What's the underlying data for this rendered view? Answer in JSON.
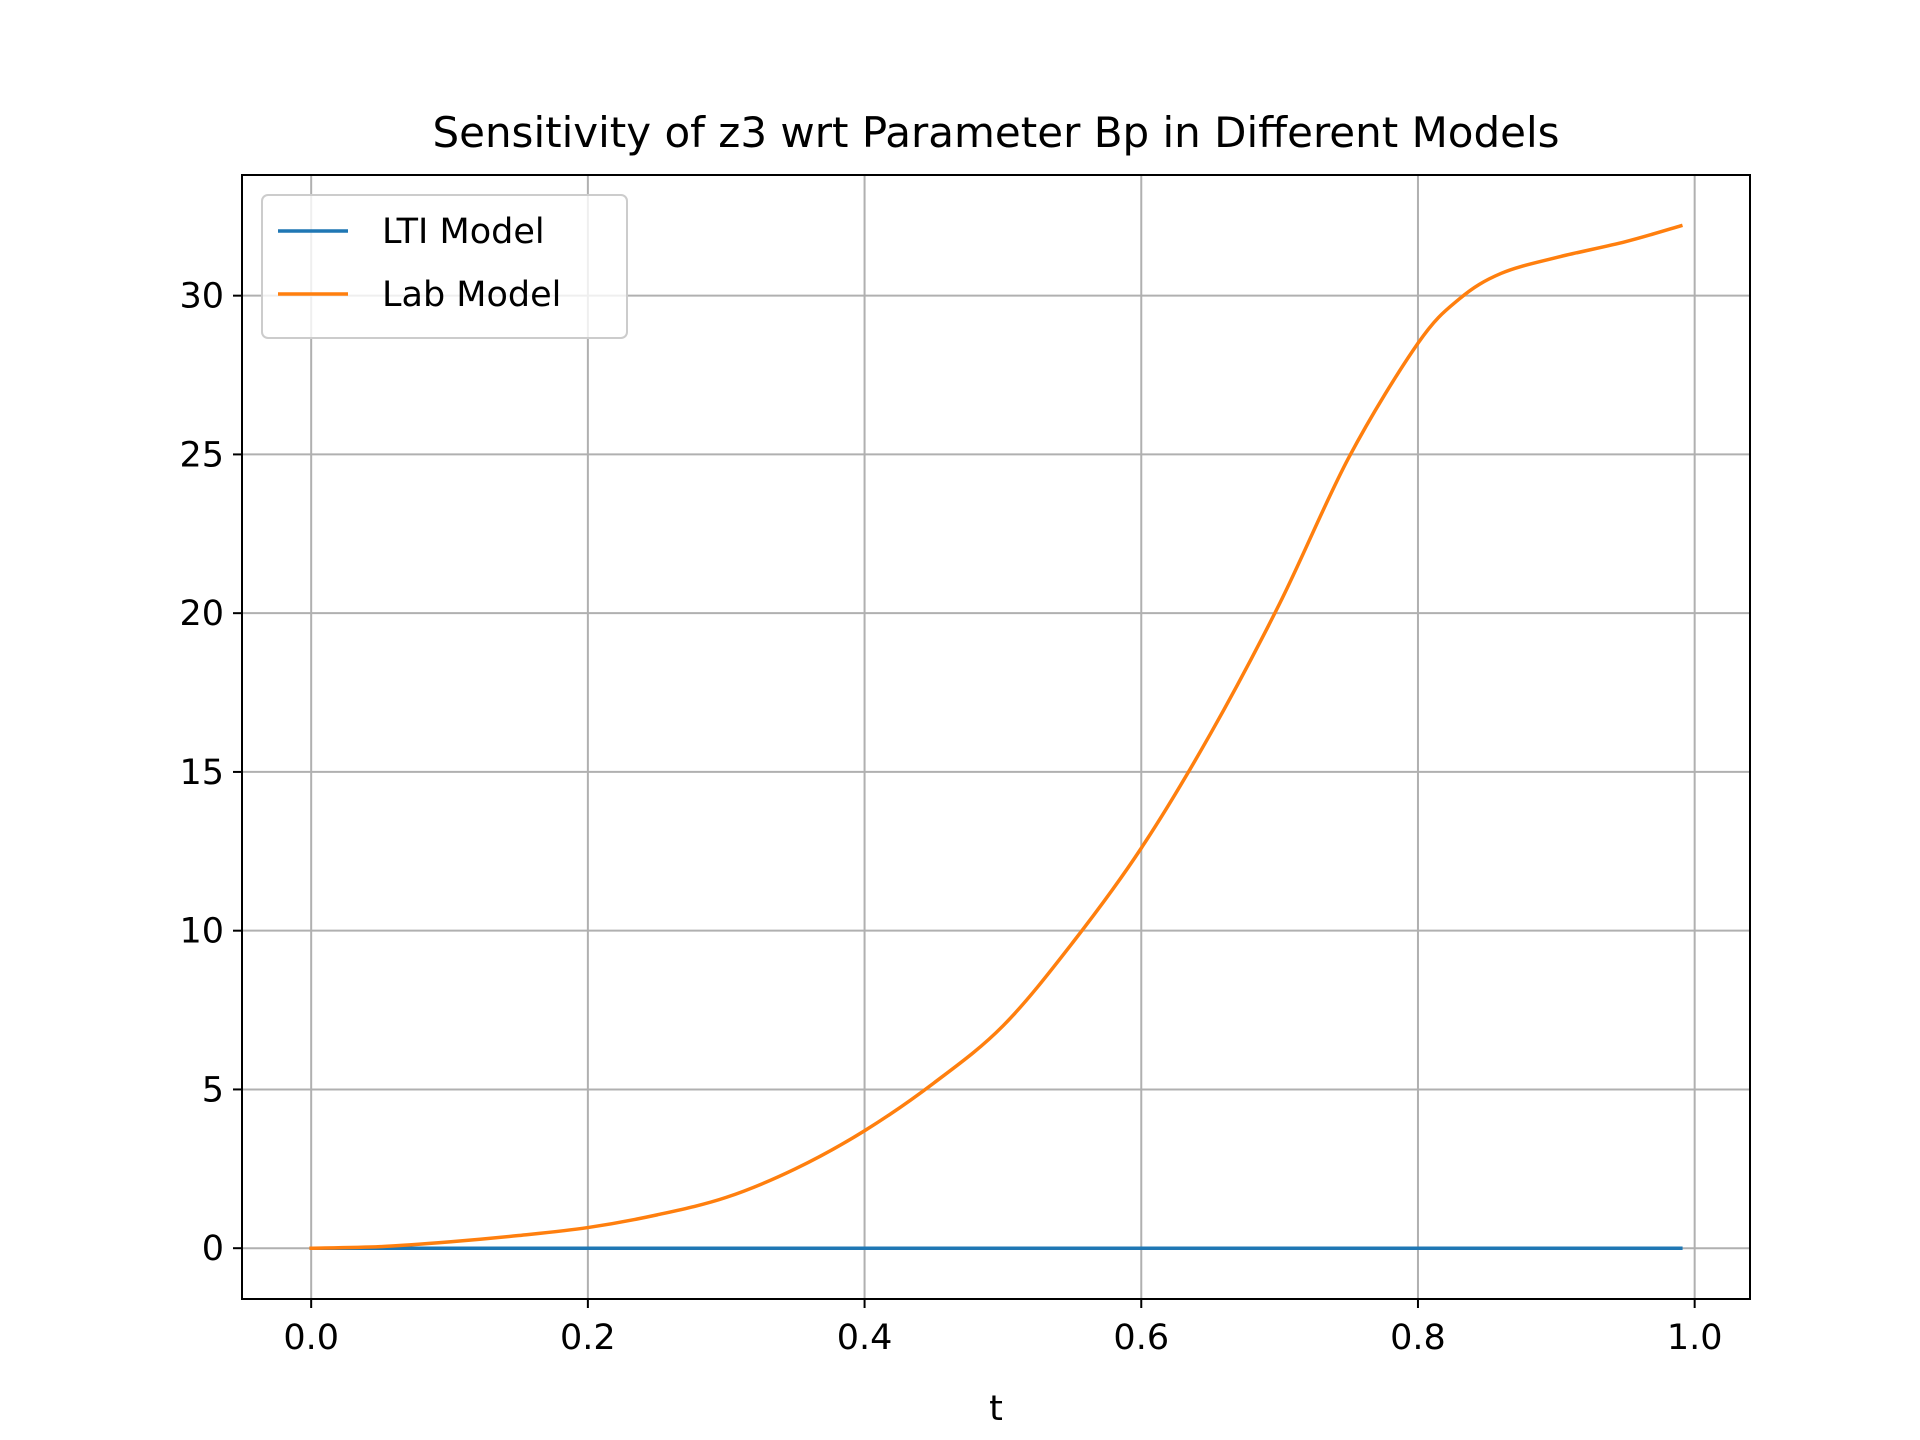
{
  "chart_data": {
    "type": "line",
    "title": "Sensitivity of z3 wrt Parameter Bp in Different Models",
    "xlabel": "t",
    "ylabel": "",
    "xlim": [
      -0.05,
      1.04
    ],
    "ylim": [
      -1.6,
      33.8
    ],
    "xticks": [
      0.0,
      0.2,
      0.4,
      0.6,
      0.8,
      1.0
    ],
    "xtick_labels": [
      "0.0",
      "0.2",
      "0.4",
      "0.6",
      "0.8",
      "1.0"
    ],
    "yticks": [
      0,
      5,
      10,
      15,
      20,
      25,
      30
    ],
    "ytick_labels": [
      "0",
      "5",
      "10",
      "15",
      "20",
      "25",
      "30"
    ],
    "grid": true,
    "legend_position": "upper-left",
    "series": [
      {
        "name": "LTI Model",
        "color": "#1f77b4",
        "x": [
          0.0,
          0.1,
          0.2,
          0.3,
          0.4,
          0.5,
          0.6,
          0.7,
          0.8,
          0.9,
          0.99
        ],
        "y": [
          0,
          0,
          0,
          0,
          0,
          0,
          0,
          0,
          0,
          0,
          0
        ]
      },
      {
        "name": "Lab Model",
        "color": "#ff7f0e",
        "x": [
          0.0,
          0.05,
          0.1,
          0.15,
          0.2,
          0.25,
          0.3,
          0.35,
          0.4,
          0.45,
          0.5,
          0.55,
          0.6,
          0.65,
          0.7,
          0.75,
          0.8,
          0.83,
          0.86,
          0.9,
          0.95,
          0.99
        ],
        "y": [
          0.0,
          0.05,
          0.2,
          0.4,
          0.65,
          1.05,
          1.6,
          2.5,
          3.7,
          5.2,
          7.0,
          9.6,
          12.6,
          16.2,
          20.3,
          24.9,
          28.5,
          29.9,
          30.7,
          31.2,
          31.7,
          32.2
        ]
      }
    ]
  }
}
